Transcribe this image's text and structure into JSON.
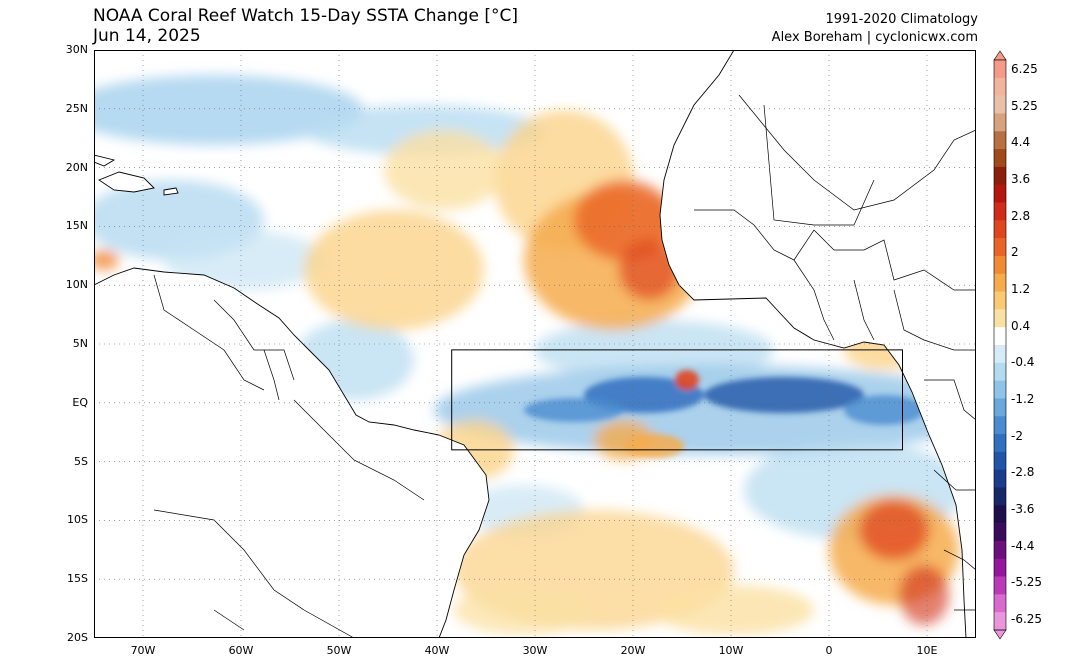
{
  "header": {
    "title": "NOAA Coral Reef Watch 15-Day SSTA Change [°C]",
    "date": "Jun 14, 2025",
    "climatology": "1991-2020 Climatology",
    "credit": "Alex Boreham | cyclonicwx.com"
  },
  "map": {
    "lat_labels": [
      "30N",
      "25N",
      "20N",
      "15N",
      "10N",
      "5N",
      "EQ",
      "5S",
      "10S",
      "15S",
      "20S"
    ],
    "lon_labels": [
      "70W",
      "60W",
      "50W",
      "40W",
      "30W",
      "20W",
      "10W",
      "0",
      "10E"
    ],
    "region_box": {
      "lon_min": -38.5,
      "lon_max": 7.5,
      "lat_min": -4.0,
      "lat_max": 4.5
    }
  },
  "colorbar": {
    "labels": [
      "6.25",
      "5.25",
      "4.4",
      "3.6",
      "2.8",
      "2",
      "1.2",
      "0.4",
      "-0.4",
      "-1.2",
      "-2",
      "-2.8",
      "-3.6",
      "-4.4",
      "-5.25",
      "-6.25"
    ],
    "colors": [
      "#f49a8a",
      "#f2b49c",
      "#e8c1a8",
      "#d9a27e",
      "#b87043",
      "#a04a1c",
      "#8c1f0c",
      "#b5160d",
      "#d02c19",
      "#e0461f",
      "#ea6427",
      "#f18a34",
      "#f6ac4c",
      "#f9c974",
      "#fbe0a3",
      "#ffffff",
      "#d7ecf7",
      "#b4daf0",
      "#8fc4e8",
      "#6aa8dc",
      "#4a8ccf",
      "#3170bf",
      "#2255a8",
      "#1b3c8a",
      "#162868",
      "#1e0f4c",
      "#3c0a5c",
      "#6a0f7c",
      "#94169c",
      "#bb3ab8",
      "#d86acd",
      "#e996dd"
    ]
  }
}
